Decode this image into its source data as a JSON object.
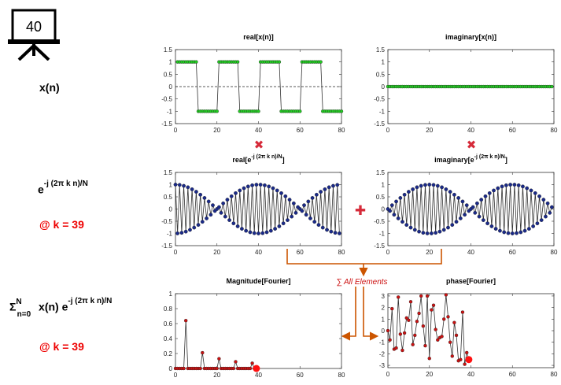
{
  "slide_number": "40",
  "left_labels": {
    "xn": "x(n)",
    "kernel_base": "e",
    "kernel_exp": "-j (2π k n)/N",
    "k_note_1": "@ k = 39",
    "sum_sym": "Σ",
    "sum_sup": "N",
    "sum_sub": "n=0",
    "sum_body": "x(n) e",
    "sum_exp": "-j (2π k n)/N",
    "k_note_2": "@ k = 39"
  },
  "operators": {
    "times": "✖",
    "plus": "✚",
    "sum_annotation": "∑ All Elements"
  },
  "colors": {
    "green_marker": "#22cc22",
    "blue_marker": "#1a2a8a",
    "red_marker": "#cc1111",
    "arrow": "#cc5500",
    "accent_red": "#ee0000"
  },
  "chart_data": [
    {
      "id": "real-x",
      "type": "line",
      "title": "real[x(n)]",
      "xlim": [
        0,
        80
      ],
      "ylim": [
        -1.5,
        1.5
      ],
      "xticks": [
        0,
        20,
        40,
        60,
        80
      ],
      "yticks": [
        -1.5,
        -1,
        -0.5,
        0,
        0.5,
        1,
        1.5
      ],
      "ytick_labels": [
        "-1.5",
        "-1",
        "-0.5",
        "0",
        "0.5",
        "1",
        "1.5"
      ],
      "signal": "square",
      "n_start": 1,
      "n_end": 80,
      "period": 20,
      "high_span": [
        0,
        9
      ],
      "marker_color": "#22cc22",
      "zero_dashed": true
    },
    {
      "id": "imag-x",
      "type": "line",
      "title": "imaginary[x(n)]",
      "xlim": [
        0,
        80
      ],
      "ylim": [
        -1.5,
        1.5
      ],
      "xticks": [
        0,
        20,
        40,
        60,
        80
      ],
      "yticks": [
        -1.5,
        -1,
        -0.5,
        0,
        0.5,
        1,
        1.5
      ],
      "ytick_labels": [
        "-1.5",
        "-1",
        "-0.5",
        "0",
        "0.5",
        "1",
        "1.5"
      ],
      "signal": "zero",
      "n_start": 0,
      "n_end": 79,
      "marker_color": "#22cc22",
      "zero_dashed": true
    },
    {
      "id": "real-e",
      "type": "line",
      "title_base": "real[e",
      "title_exp": "-j (2π k n)/N",
      "title_end": "]",
      "xlim": [
        0,
        80
      ],
      "ylim": [
        -1.5,
        1.5
      ],
      "xticks": [
        0,
        20,
        40,
        60,
        80
      ],
      "yticks": [
        -1.5,
        -1,
        -0.5,
        0,
        0.5,
        1,
        1.5
      ],
      "ytick_labels": [
        "-1.5",
        "-1",
        "-0.5",
        "0",
        "0.5",
        "1",
        "1.5"
      ],
      "signal": "cos",
      "n_start": 0,
      "n_end": 79,
      "k": 39,
      "N": 80,
      "marker_color": "#1a2a8a"
    },
    {
      "id": "imag-e",
      "type": "line",
      "title_base": "imaginary[e",
      "title_exp": "-j (2π k n)/N",
      "title_end": "]",
      "xlim": [
        0,
        80
      ],
      "ylim": [
        -1.5,
        1.5
      ],
      "xticks": [
        0,
        20,
        40,
        60,
        80
      ],
      "yticks": [
        -1.5,
        -1,
        -0.5,
        0,
        0.5,
        1,
        1.5
      ],
      "ytick_labels": [
        "-1.5",
        "-1",
        "-0.5",
        "0",
        "0.5",
        "1",
        "1.5"
      ],
      "signal": "negsin",
      "n_start": 0,
      "n_end": 79,
      "k": 39,
      "N": 80,
      "marker_color": "#1a2a8a"
    },
    {
      "id": "magnitude",
      "type": "line",
      "title": "Magnitude[Fourier]",
      "xlim": [
        0,
        80
      ],
      "ylim": [
        0,
        1
      ],
      "xticks": [
        0,
        20,
        40,
        60,
        80
      ],
      "yticks": [
        0,
        0.2,
        0.4,
        0.6,
        0.8,
        1
      ],
      "ytick_labels": [
        "0",
        "0.2",
        "0.4",
        "0.6",
        "0.8",
        "1"
      ],
      "x": [
        0,
        1,
        2,
        3,
        4,
        5,
        6,
        7,
        8,
        9,
        10,
        11,
        12,
        13,
        14,
        15,
        16,
        17,
        18,
        19,
        20,
        21,
        22,
        23,
        24,
        25,
        26,
        27,
        28,
        29,
        30,
        31,
        32,
        33,
        34,
        35,
        36,
        37,
        38,
        39
      ],
      "y": [
        0,
        0,
        0,
        0,
        0,
        0.64,
        0,
        0,
        0,
        0,
        0,
        0,
        0,
        0.21,
        0,
        0,
        0,
        0,
        0,
        0,
        0,
        0.13,
        0,
        0,
        0,
        0,
        0,
        0,
        0,
        0.09,
        0,
        0,
        0,
        0,
        0,
        0,
        0,
        0.07,
        0,
        0
      ],
      "marker_color": "#cc1111",
      "highlight_index": 39
    },
    {
      "id": "phase",
      "type": "line",
      "title": "phase[Fourier]",
      "xlim": [
        0,
        80
      ],
      "ylim": [
        -3.2,
        3.2
      ],
      "xticks": [
        0,
        20,
        40,
        60,
        80
      ],
      "yticks": [
        -3,
        -2,
        -1,
        0,
        1,
        2,
        3
      ],
      "ytick_labels": [
        "-3",
        "-2",
        "-1",
        "0",
        "1",
        "2",
        "3"
      ],
      "x": [
        0,
        1,
        2,
        3,
        4,
        5,
        6,
        7,
        8,
        9,
        10,
        11,
        12,
        13,
        14,
        15,
        16,
        17,
        18,
        19,
        20,
        21,
        22,
        23,
        24,
        25,
        26,
        27,
        28,
        29,
        30,
        31,
        32,
        33,
        34,
        35,
        36,
        37,
        38,
        39
      ],
      "y": [
        0,
        -0.8,
        1.9,
        -1.6,
        -1.5,
        2.9,
        -0.3,
        -1.7,
        -0.2,
        1.1,
        0.9,
        2.5,
        -1.2,
        -0.4,
        0.8,
        1.5,
        3,
        0.4,
        -1.3,
        3,
        -2.4,
        1.8,
        2.2,
        0.1,
        -0.8,
        -0.6,
        -0.5,
        1,
        3.1,
        1.2,
        -1,
        -2.2,
        0.7,
        -0.4,
        -2.6,
        -2.5,
        1.6,
        -2.9,
        -1.9,
        -2.5
      ],
      "marker_color": "#cc1111",
      "highlight_index": 39
    }
  ]
}
